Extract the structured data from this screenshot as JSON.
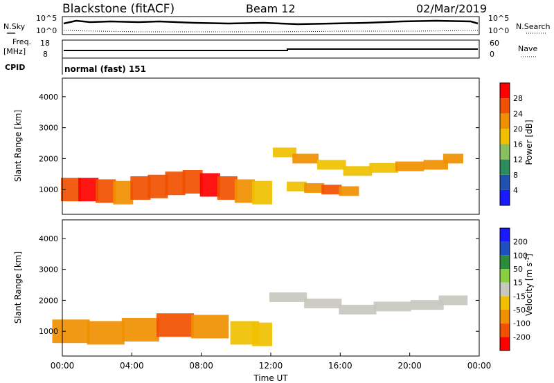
{
  "header": {
    "station": "Blackstone (fitACF)",
    "beam": "Beam 12",
    "date": "02/Mar/2019"
  },
  "noise_panel": {
    "left_label": "N.Sky",
    "right_label": "N.Search",
    "left_ticks": [
      "10^5",
      "10^0"
    ],
    "right_ticks": [
      "10^5",
      "10^0"
    ]
  },
  "freq_panel": {
    "left_label_1": "Freq.",
    "left_label_2": "[MHz]",
    "right_label": "Nave",
    "left_ticks": [
      "18",
      "8"
    ],
    "right_ticks": [
      "60",
      "0"
    ],
    "cpid_label": "CPID",
    "cpid_value": "normal (fast) 151"
  },
  "colors": {
    "power": [
      "#1a1aff",
      "#2050b0",
      "#2c8c5c",
      "#88c060",
      "#f0c000",
      "#f09000",
      "#f05000",
      "#ff0000"
    ],
    "velocity": [
      "#ff0000",
      "#f05000",
      "#f09000",
      "#f0c000",
      "#c8c8c0",
      "#88d040",
      "#2c8c3c",
      "#2050c0",
      "#1a1aff"
    ]
  },
  "chart_data": [
    {
      "type": "heatmap",
      "panel": "power",
      "ylabel": "Slant Range [km]",
      "y_ticks": [
        "1000",
        "2000",
        "3000",
        "4000"
      ],
      "ylim": [
        200,
        4600
      ],
      "xlim": [
        0,
        24
      ],
      "colorbar_label": "Power [dB]",
      "colorbar_ticks": [
        "4",
        "8",
        "12",
        "16",
        "20",
        "24",
        "28"
      ],
      "series": [
        {
          "x": [
            0.5,
            1.5,
            2.5,
            3.5,
            4.5,
            5.5,
            6.5,
            7.5,
            8.5,
            9.5,
            10.5,
            11.5
          ],
          "y": [
            1000,
            1000,
            950,
            900,
            1050,
            1100,
            1200,
            1250,
            1150,
            1050,
            950,
            900
          ],
          "values": [
            26,
            28,
            24,
            20,
            24,
            26,
            24,
            26,
            28,
            26,
            22,
            18
          ]
        },
        {
          "x": [
            12.8,
            14,
            15.5,
            17,
            18.5,
            20,
            21.5,
            22.5
          ],
          "y": [
            2200,
            2000,
            1800,
            1600,
            1700,
            1750,
            1800,
            2000
          ],
          "values": [
            16,
            20,
            18,
            16,
            18,
            20,
            22,
            20
          ]
        },
        {
          "x": [
            13.5,
            14.5,
            15.5,
            16.5
          ],
          "y": [
            1100,
            1050,
            1000,
            950
          ],
          "values": [
            16,
            20,
            24,
            20
          ]
        }
      ]
    },
    {
      "type": "heatmap",
      "panel": "velocity",
      "xlabel": "Time UT",
      "ylabel": "Slant Range [km]",
      "x_ticks": [
        "00:00",
        "04:00",
        "08:00",
        "12:00",
        "16:00",
        "20:00",
        "00:00"
      ],
      "y_ticks": [
        "1000",
        "2000",
        "3000",
        "4000"
      ],
      "ylim": [
        200,
        4600
      ],
      "xlim": [
        0,
        24
      ],
      "colorbar_label": "Velocity [m s^-1]",
      "colorbar_ticks": [
        "-200",
        "-100",
        "-50",
        "-15",
        "15",
        "50",
        "100",
        "200"
      ],
      "series": [
        {
          "x": [
            0.5,
            2.5,
            4.5,
            6.5,
            8.5,
            10.5,
            11.5
          ],
          "y": [
            1000,
            950,
            1050,
            1200,
            1150,
            950,
            900
          ],
          "values": [
            -60,
            -50,
            -80,
            -100,
            -90,
            -40,
            -30
          ]
        },
        {
          "x": [
            13,
            15,
            17,
            19,
            21,
            22.5
          ],
          "y": [
            2100,
            1900,
            1700,
            1800,
            1850,
            2000
          ],
          "values": [
            0,
            0,
            0,
            0,
            0,
            0
          ]
        }
      ]
    }
  ]
}
